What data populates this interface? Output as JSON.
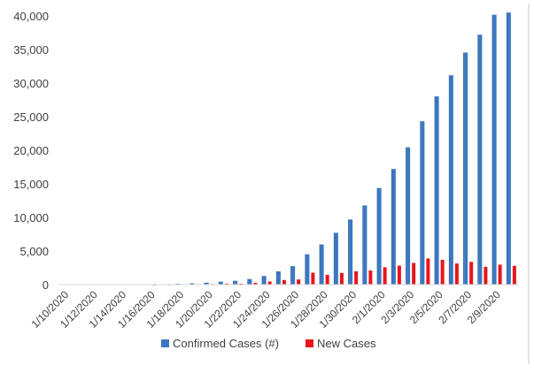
{
  "chart_data": {
    "type": "bar",
    "title": "",
    "xlabel": "",
    "ylabel": "",
    "ylim": [
      0,
      40000
    ],
    "yticks": [
      0,
      5000,
      10000,
      15000,
      20000,
      25000,
      30000,
      35000,
      40000
    ],
    "ytick_labels": [
      "0",
      "5,000",
      "10,000",
      "15,000",
      "20,000",
      "25,000",
      "30,000",
      "35,000",
      "40,000"
    ],
    "grid": false,
    "legend_position": "bottom",
    "categories": [
      "1/10/2020",
      "1/11/2020",
      "1/12/2020",
      "1/13/2020",
      "1/14/2020",
      "1/15/2020",
      "1/16/2020",
      "1/17/2020",
      "1/18/2020",
      "1/19/2020",
      "1/20/2020",
      "1/21/2020",
      "1/22/2020",
      "1/23/2020",
      "1/24/2020",
      "1/25/2020",
      "1/26/2020",
      "1/27/2020",
      "1/28/2020",
      "1/29/2020",
      "1/30/2020",
      "1/31/2020",
      "2/1/2020",
      "2/2/2020",
      "2/3/2020",
      "2/4/2020",
      "2/5/2020",
      "2/6/2020",
      "2/7/2020",
      "2/8/2020",
      "2/9/2020",
      "2/10/2020"
    ],
    "visible_tick_labels": [
      "1/10/2020",
      "1/12/2020",
      "1/14/2020",
      "1/16/2020",
      "1/18/2020",
      "1/20/2020",
      "1/22/2020",
      "1/24/2020",
      "1/26/2020",
      "1/28/2020",
      "1/30/2020",
      "2/1/2020",
      "2/3/2020",
      "2/5/2020",
      "2/7/2020",
      "2/9/2020"
    ],
    "series": [
      {
        "name": "Confirmed Cases (#)",
        "color": "#3a78c3",
        "values": [
          41,
          41,
          41,
          41,
          0,
          0,
          45,
          62,
          121,
          198,
          291,
          440,
          571,
          830,
          1287,
          1975,
          2744,
          4515,
          5974,
          7711,
          9692,
          11791,
          14380,
          17205,
          20438,
          24324,
          28018,
          31161,
          34546,
          37198,
          40171,
          40500
        ]
      },
      {
        "name": "New Cases",
        "color": "#e8151b",
        "values": [
          0,
          0,
          0,
          0,
          0,
          0,
          4,
          17,
          59,
          77,
          93,
          149,
          131,
          259,
          457,
          688,
          769,
          1771,
          1459,
          1737,
          1981,
          2099,
          2589,
          2825,
          3233,
          3886,
          3694,
          3143,
          3385,
          2652,
          2973,
          2800
        ]
      }
    ]
  }
}
